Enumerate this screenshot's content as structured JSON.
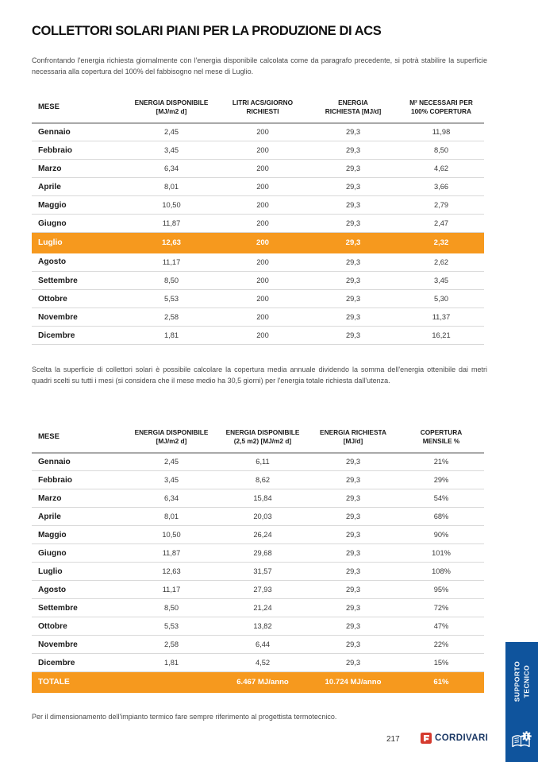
{
  "page": {
    "title": "COLLETTORI SOLARI PIANI PER LA PRODUZIONE DI ACS",
    "intro": "Confrontando l'energia richiesta giornalmente con l'energia disponibile calcolata come da paragrafo precedente, si potrà stabilire la superficie necessaria alla copertura del 100% del fabbisogno nel mese di Luglio.",
    "middle_note": "Scelta la superficie di collettori solari è possibile calcolare la copertura media annuale dividendo la somma dell'energia ottenibile dai metri quadri scelti su tutti i mesi (si considera che il mese medio ha 30,5 giorni) per l'energia totale richiesta dall'utenza.",
    "footer_note": "Per il dimensionamento dell'impianto termico fare sempre riferimento al progettista termotecnico.",
    "page_number": "217"
  },
  "brand": {
    "logo_text": "CORDIVARI",
    "logo_icon": "cordivari-mark",
    "colors": {
      "orange": "#F6991E",
      "navy": "#1C3966",
      "red": "#D53A2E",
      "blue_tab": "#0F549D"
    }
  },
  "sidebar_tab": {
    "label": "SUPPORTO\nTECNICO",
    "icon": "book-info-icon"
  },
  "table1": {
    "headers": [
      [
        "MESE"
      ],
      [
        "ENERGIA DISPONIBILE",
        "[MJ/m2 d]"
      ],
      [
        "LITRI ACS/GIORNO",
        "RICHIESTI"
      ],
      [
        "ENERGIA",
        "RICHIESTA [MJ/d]"
      ],
      [
        "M² NECESSARI PER",
        "100% COPERTURA"
      ]
    ],
    "highlight_month": "Luglio",
    "rows": [
      [
        "Gennaio",
        "2,45",
        "200",
        "29,3",
        "11,98"
      ],
      [
        "Febbraio",
        "3,45",
        "200",
        "29,3",
        "8,50"
      ],
      [
        "Marzo",
        "6,34",
        "200",
        "29,3",
        "4,62"
      ],
      [
        "Aprile",
        "8,01",
        "200",
        "29,3",
        "3,66"
      ],
      [
        "Maggio",
        "10,50",
        "200",
        "29,3",
        "2,79"
      ],
      [
        "Giugno",
        "11,87",
        "200",
        "29,3",
        "2,47"
      ],
      [
        "Luglio",
        "12,63",
        "200",
        "29,3",
        "2,32"
      ],
      [
        "Agosto",
        "11,17",
        "200",
        "29,3",
        "2,62"
      ],
      [
        "Settembre",
        "8,50",
        "200",
        "29,3",
        "3,45"
      ],
      [
        "Ottobre",
        "5,53",
        "200",
        "29,3",
        "5,30"
      ],
      [
        "Novembre",
        "2,58",
        "200",
        "29,3",
        "11,37"
      ],
      [
        "Dicembre",
        "1,81",
        "200",
        "29,3",
        "16,21"
      ]
    ]
  },
  "table2": {
    "headers": [
      [
        "MESE"
      ],
      [
        "ENERGIA DISPONIBILE",
        "[MJ/m2 d]"
      ],
      [
        "ENERGIA DISPONIBILE",
        "(2,5 m2) [MJ/m2 d]"
      ],
      [
        "ENERGIA RICHIESTA",
        "[MJ/d]"
      ],
      [
        "COPERTURA",
        "MENSILE %"
      ]
    ],
    "rows": [
      [
        "Gennaio",
        "2,45",
        "6,11",
        "29,3",
        "21%"
      ],
      [
        "Febbraio",
        "3,45",
        "8,62",
        "29,3",
        "29%"
      ],
      [
        "Marzo",
        "6,34",
        "15,84",
        "29,3",
        "54%"
      ],
      [
        "Aprile",
        "8,01",
        "20,03",
        "29,3",
        "68%"
      ],
      [
        "Maggio",
        "10,50",
        "26,24",
        "29,3",
        "90%"
      ],
      [
        "Giugno",
        "11,87",
        "29,68",
        "29,3",
        "101%"
      ],
      [
        "Luglio",
        "12,63",
        "31,57",
        "29,3",
        "108%"
      ],
      [
        "Agosto",
        "11,17",
        "27,93",
        "29,3",
        "95%"
      ],
      [
        "Settembre",
        "8,50",
        "21,24",
        "29,3",
        "72%"
      ],
      [
        "Ottobre",
        "5,53",
        "13,82",
        "29,3",
        "47%"
      ],
      [
        "Novembre",
        "2,58",
        "6,44",
        "29,3",
        "22%"
      ],
      [
        "Dicembre",
        "1,81",
        "4,52",
        "29,3",
        "15%"
      ]
    ],
    "total_row": [
      "TOTALE",
      "",
      "6.467 MJ/anno",
      "10.724 MJ/anno",
      "61%"
    ]
  }
}
